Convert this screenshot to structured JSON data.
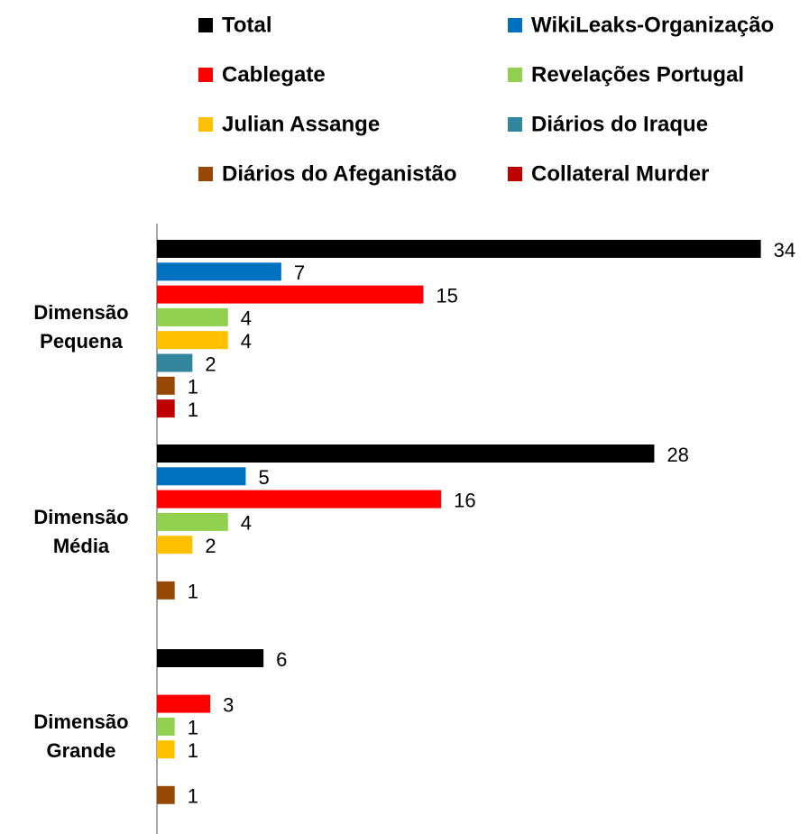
{
  "chart_data": {
    "type": "hbar",
    "categories": [
      "Dimensão Pequena",
      "Dimensão Média",
      "Dimensão Grande"
    ],
    "series": [
      {
        "name": "Total",
        "color": "#000000",
        "values": [
          34,
          28,
          6
        ]
      },
      {
        "name": "WikiLeaks-Organização",
        "color": "#0070c0",
        "values": [
          7,
          5,
          null
        ]
      },
      {
        "name": "Cablegate",
        "color": "#ff0000",
        "values": [
          15,
          16,
          3
        ]
      },
      {
        "name": "Revelações Portugal",
        "color": "#92d050",
        "values": [
          4,
          4,
          1
        ]
      },
      {
        "name": "Julian Assange",
        "color": "#ffc000",
        "values": [
          4,
          2,
          1
        ]
      },
      {
        "name": "Diários do Iraque",
        "color": "#31859c",
        "values": [
          2,
          null,
          null
        ]
      },
      {
        "name": "Diários do Afeganistão",
        "color": "#974706",
        "values": [
          1,
          1,
          1
        ]
      },
      {
        "name": "Collateral Murder",
        "color": "#c00000",
        "values": [
          1,
          null,
          null
        ]
      }
    ],
    "xlim": [
      0,
      36
    ],
    "legend": "top"
  }
}
